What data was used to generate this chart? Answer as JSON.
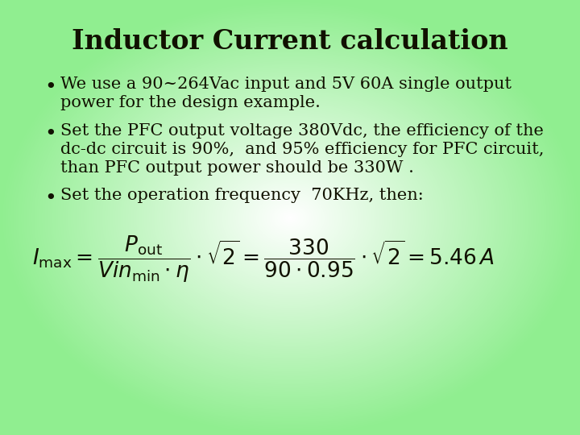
{
  "title": "Inductor Current calculation",
  "title_fontsize": 24,
  "title_fontweight": "bold",
  "bullet1_line1": "We use a 90~264Vac input and 5V 60A single output",
  "bullet1_line2": "power for the design example.",
  "bullet2_line1": "Set the PFC output voltage 380Vdc, the efficiency of the",
  "bullet2_line2": "dc-dc circuit is 90%,  and 95% efficiency for PFC circuit,",
  "bullet2_line3": "than PFC output power should be 330W .",
  "bullet3": "Set the operation frequency  70KHz, then:",
  "text_fontsize": 15,
  "text_color": "#111100",
  "formula_color": "#111100",
  "bg_green": [
    144,
    238,
    144
  ],
  "bg_white": [
    255,
    255,
    255
  ]
}
